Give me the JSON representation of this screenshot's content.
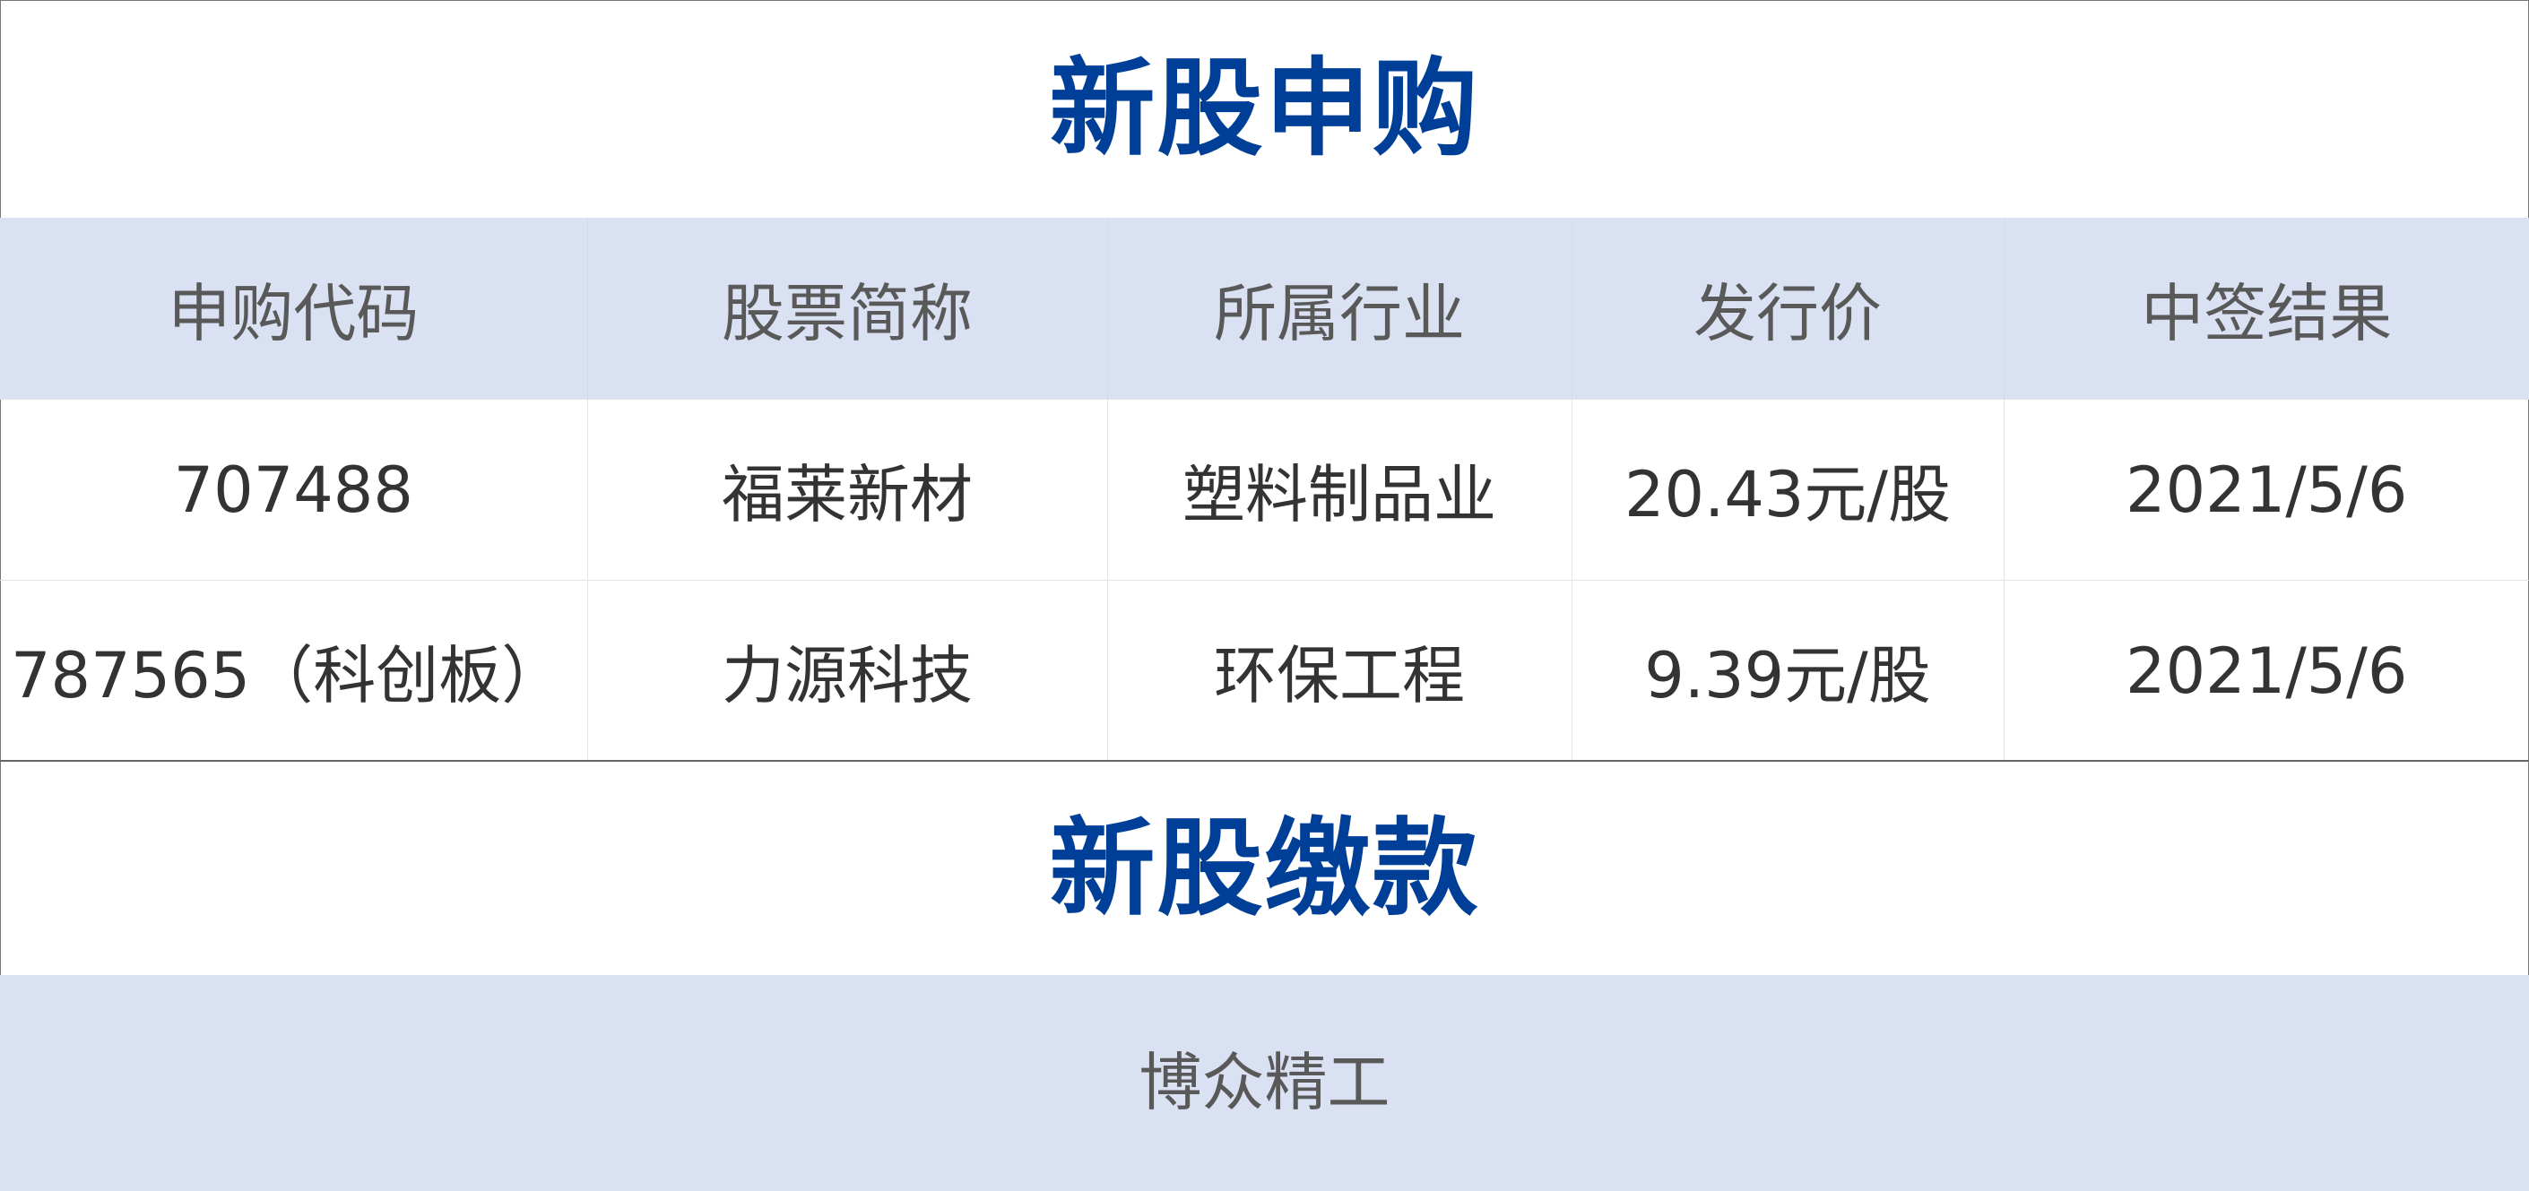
{
  "subscription": {
    "title": "新股申购",
    "columns": [
      "申购代码",
      "股票简称",
      "所属行业",
      "发行价",
      "中签结果"
    ],
    "rows": [
      [
        "707488",
        "福莱新材",
        "塑料制品业",
        "20.43元/股",
        "2021/5/6"
      ],
      [
        "787565（科创板）",
        "力源科技",
        "环保工程",
        "9.39元/股",
        "2021/5/6"
      ]
    ]
  },
  "payment": {
    "title": "新股缴款",
    "stocks": [
      "博众精工"
    ]
  },
  "colors": {
    "accent": "#003f98",
    "header_bg": "#dae1f2"
  }
}
